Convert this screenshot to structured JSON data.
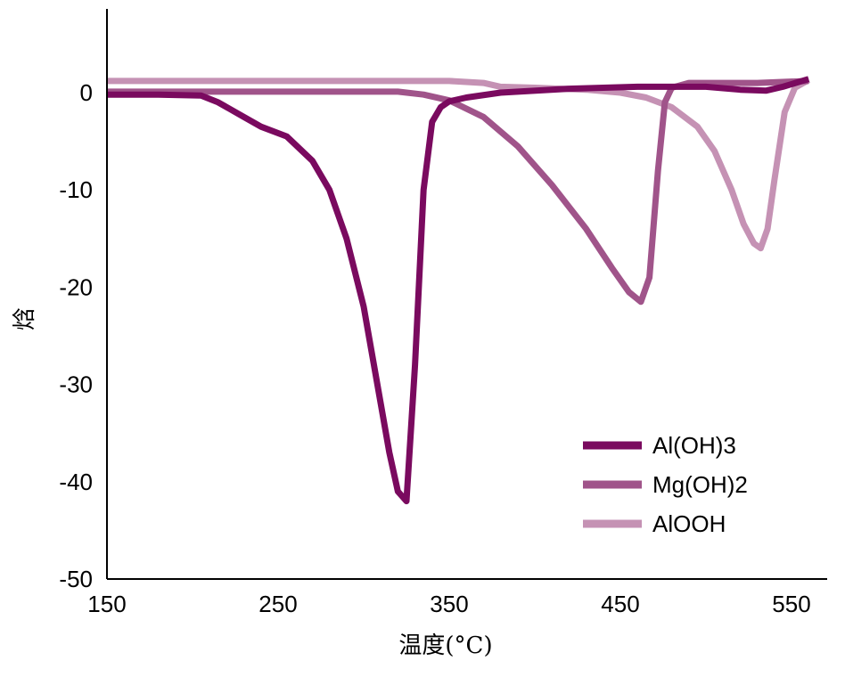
{
  "chart_data": {
    "type": "line",
    "title": "",
    "xlabel": "温度(°C)",
    "ylabel": "焓",
    "xlim": [
      150,
      560
    ],
    "ylim": [
      -50,
      8
    ],
    "xticks": [
      150,
      250,
      350,
      450,
      550
    ],
    "yticks": [
      0,
      -10,
      -20,
      -30,
      -40,
      -50
    ],
    "grid": false,
    "legend_position": "bottom-right",
    "series": [
      {
        "name": "Al(OH)3",
        "color": "#7a0a5f",
        "x": [
          150,
          180,
          205,
          215,
          230,
          240,
          255,
          270,
          280,
          290,
          300,
          310,
          315,
          320,
          325,
          330,
          335,
          340,
          345,
          350,
          360,
          380,
          420,
          460,
          500,
          520,
          535,
          545,
          560
        ],
        "y": [
          -0.2,
          -0.2,
          -0.3,
          -1,
          -2.5,
          -3.5,
          -4.5,
          -7,
          -10,
          -15,
          -22,
          -32,
          -37,
          -41,
          -42,
          -28,
          -10,
          -3,
          -1.5,
          -0.9,
          -0.5,
          0,
          0.4,
          0.6,
          0.6,
          0.3,
          0.2,
          0.6,
          1.4
        ]
      },
      {
        "name": "Mg(OH)2",
        "color": "#a0548a",
        "x": [
          150,
          200,
          250,
          300,
          320,
          335,
          350,
          370,
          390,
          410,
          430,
          445,
          455,
          462,
          467,
          472,
          476,
          480,
          490,
          510,
          530,
          560
        ],
        "y": [
          0.1,
          0.1,
          0.1,
          0.1,
          0.1,
          -0.2,
          -0.8,
          -2.5,
          -5.5,
          -9.5,
          -14,
          -18,
          -20.5,
          -21.5,
          -19,
          -8,
          -1,
          0.5,
          1,
          1,
          1,
          1.2
        ]
      },
      {
        "name": "AlOOH",
        "color": "#c592b4",
        "x": [
          150,
          250,
          350,
          370,
          380,
          400,
          430,
          450,
          465,
          480,
          495,
          505,
          515,
          522,
          528,
          532,
          536,
          540,
          546,
          552,
          560
        ],
        "y": [
          1.2,
          1.2,
          1.2,
          1,
          0.6,
          0.5,
          0.3,
          0,
          -0.5,
          -1.5,
          -3.5,
          -6,
          -10,
          -13.5,
          -15.5,
          -16,
          -14,
          -9,
          -2,
          0.5,
          1.3
        ]
      }
    ]
  }
}
